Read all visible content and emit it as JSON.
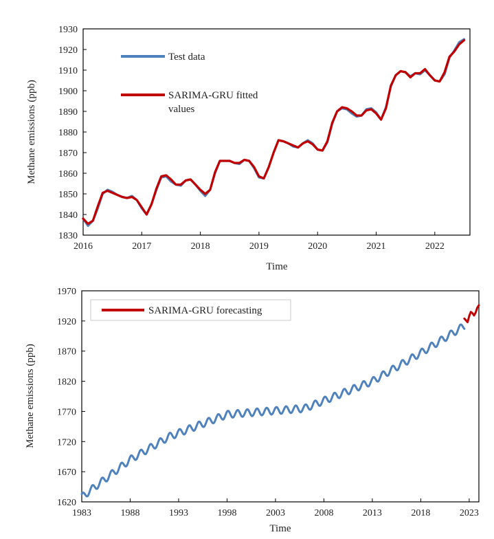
{
  "chart_data": [
    {
      "type": "line",
      "xlabel": "Time",
      "ylabel": "Methane emissions (ppb)",
      "xlim": [
        2016,
        2022.6
      ],
      "ylim": [
        1830,
        1930
      ],
      "x_ticks": [
        2016,
        2017,
        2018,
        2019,
        2020,
        2021,
        2022
      ],
      "y_ticks": [
        1830,
        1840,
        1850,
        1860,
        1870,
        1880,
        1890,
        1900,
        1910,
        1920,
        1930
      ],
      "grid": false,
      "legend": "top-left",
      "series": [
        {
          "name": "Test data",
          "color": "#4F81BD",
          "x": [
            2016.0,
            2016.083,
            2016.167,
            2016.25,
            2016.333,
            2016.417,
            2016.5,
            2016.583,
            2016.667,
            2016.75,
            2016.833,
            2016.917,
            2017.0,
            2017.083,
            2017.167,
            2017.25,
            2017.333,
            2017.417,
            2017.5,
            2017.583,
            2017.667,
            2017.75,
            2017.833,
            2017.917,
            2018.0,
            2018.083,
            2018.167,
            2018.25,
            2018.333,
            2018.417,
            2018.5,
            2018.583,
            2018.667,
            2018.75,
            2018.833,
            2018.917,
            2019.0,
            2019.083,
            2019.167,
            2019.25,
            2019.333,
            2019.417,
            2019.5,
            2019.583,
            2019.667,
            2019.75,
            2019.833,
            2019.917,
            2020.0,
            2020.083,
            2020.167,
            2020.25,
            2020.333,
            2020.417,
            2020.5,
            2020.583,
            2020.667,
            2020.75,
            2020.833,
            2020.917,
            2021.0,
            2021.083,
            2021.167,
            2021.25,
            2021.333,
            2021.417,
            2021.5,
            2021.583,
            2021.667,
            2021.75,
            2021.833,
            2021.917,
            2022.0,
            2022.083,
            2022.167,
            2022.25,
            2022.333,
            2022.417,
            2022.5
          ],
          "values": [
            1838,
            1834.5,
            1837,
            1843,
            1850,
            1852,
            1851,
            1849.5,
            1848.5,
            1848,
            1849,
            1847,
            1843,
            1840,
            1845,
            1852,
            1858,
            1858.5,
            1856,
            1854.5,
            1854,
            1856.5,
            1857,
            1854.5,
            1851.5,
            1849,
            1852,
            1860,
            1866,
            1866,
            1866,
            1865,
            1864.5,
            1866.5,
            1866,
            1862.5,
            1858,
            1857.5,
            1863,
            1870,
            1876,
            1875.5,
            1874.5,
            1873,
            1872.5,
            1874.5,
            1876,
            1874.5,
            1871.5,
            1871,
            1875,
            1884,
            1890,
            1891.5,
            1891,
            1889,
            1887.5,
            1888,
            1891,
            1891.5,
            1889.5,
            1886,
            1892,
            1902,
            1907.5,
            1909.5,
            1909,
            1907,
            1908.5,
            1908,
            1910,
            1907.5,
            1905,
            1904.5,
            1908,
            1916,
            1919.5,
            1923.5,
            1925
          ]
        },
        {
          "name": "SARIMA-GRU fitted values",
          "color": "#C00000",
          "x": [
            2016.0,
            2016.083,
            2016.167,
            2016.25,
            2016.333,
            2016.417,
            2016.5,
            2016.583,
            2016.667,
            2016.75,
            2016.833,
            2016.917,
            2017.0,
            2017.083,
            2017.167,
            2017.25,
            2017.333,
            2017.417,
            2017.5,
            2017.583,
            2017.667,
            2017.75,
            2017.833,
            2017.917,
            2018.0,
            2018.083,
            2018.167,
            2018.25,
            2018.333,
            2018.417,
            2018.5,
            2018.583,
            2018.667,
            2018.75,
            2018.833,
            2018.917,
            2019.0,
            2019.083,
            2019.167,
            2019.25,
            2019.333,
            2019.417,
            2019.5,
            2019.583,
            2019.667,
            2019.75,
            2019.833,
            2019.917,
            2020.0,
            2020.083,
            2020.167,
            2020.25,
            2020.333,
            2020.417,
            2020.5,
            2020.583,
            2020.667,
            2020.75,
            2020.833,
            2020.917,
            2021.0,
            2021.083,
            2021.167,
            2021.25,
            2021.333,
            2021.417,
            2021.5,
            2021.583,
            2021.667,
            2021.75,
            2021.833,
            2021.917,
            2022.0,
            2022.083,
            2022.167,
            2022.25,
            2022.333,
            2022.417,
            2022.5
          ],
          "values": [
            1838,
            1835.5,
            1837,
            1844,
            1850.5,
            1851.5,
            1850.5,
            1849.5,
            1848.5,
            1848,
            1848.5,
            1847,
            1843.5,
            1840,
            1845,
            1852.5,
            1858.5,
            1859,
            1857,
            1854.5,
            1854.5,
            1856.5,
            1857,
            1854.5,
            1852,
            1850,
            1852,
            1860.5,
            1866,
            1866,
            1866,
            1865,
            1865,
            1866.5,
            1866,
            1863,
            1858.5,
            1857.5,
            1863,
            1870,
            1876,
            1875.5,
            1874.5,
            1873.5,
            1872.5,
            1874.5,
            1875.5,
            1874,
            1871.5,
            1871,
            1875.5,
            1884.5,
            1890,
            1892,
            1891.5,
            1890,
            1888,
            1888,
            1890.5,
            1891,
            1889,
            1886,
            1891.5,
            1902.5,
            1907.5,
            1909.5,
            1909,
            1906.5,
            1908.5,
            1908.5,
            1910.5,
            1907.5,
            1905,
            1904.5,
            1909,
            1916.5,
            1919,
            1922.5,
            1924.5
          ]
        }
      ]
    },
    {
      "type": "line",
      "xlabel": "Time",
      "ylabel": "Methane emissions (ppb)",
      "xlim": [
        1983,
        2024
      ],
      "ylim": [
        1620,
        1970
      ],
      "x_ticks": [
        1983,
        1988,
        1993,
        1998,
        2003,
        2008,
        2013,
        2018,
        2023
      ],
      "y_ticks": [
        1620,
        1670,
        1720,
        1770,
        1820,
        1870,
        1920,
        1970
      ],
      "grid": false,
      "legend": "top-left",
      "trend": {
        "note_free": true,
        "knot_years": [
          1983,
          1988,
          1992,
          1998,
          2006,
          2013,
          2018,
          2022.5
        ],
        "knot_values": [
          1628,
          1690,
          1728,
          1765,
          1775,
          1820,
          1867,
          1912
        ],
        "seasonal_amplitude": 6
      },
      "series": [
        {
          "name": "",
          "color": "#4F81BD",
          "start": 1983,
          "end": 2022.5
        },
        {
          "name": "SARIMA-GRU forecasting",
          "color": "#C00000",
          "x": [
            2022.5,
            2022.667,
            2022.833,
            2023.0,
            2023.167,
            2023.333,
            2023.5,
            2023.667,
            2023.833,
            2024.0
          ],
          "values": [
            1924,
            1921,
            1918,
            1928,
            1935,
            1933,
            1929,
            1934,
            1942,
            1946
          ]
        }
      ]
    }
  ]
}
